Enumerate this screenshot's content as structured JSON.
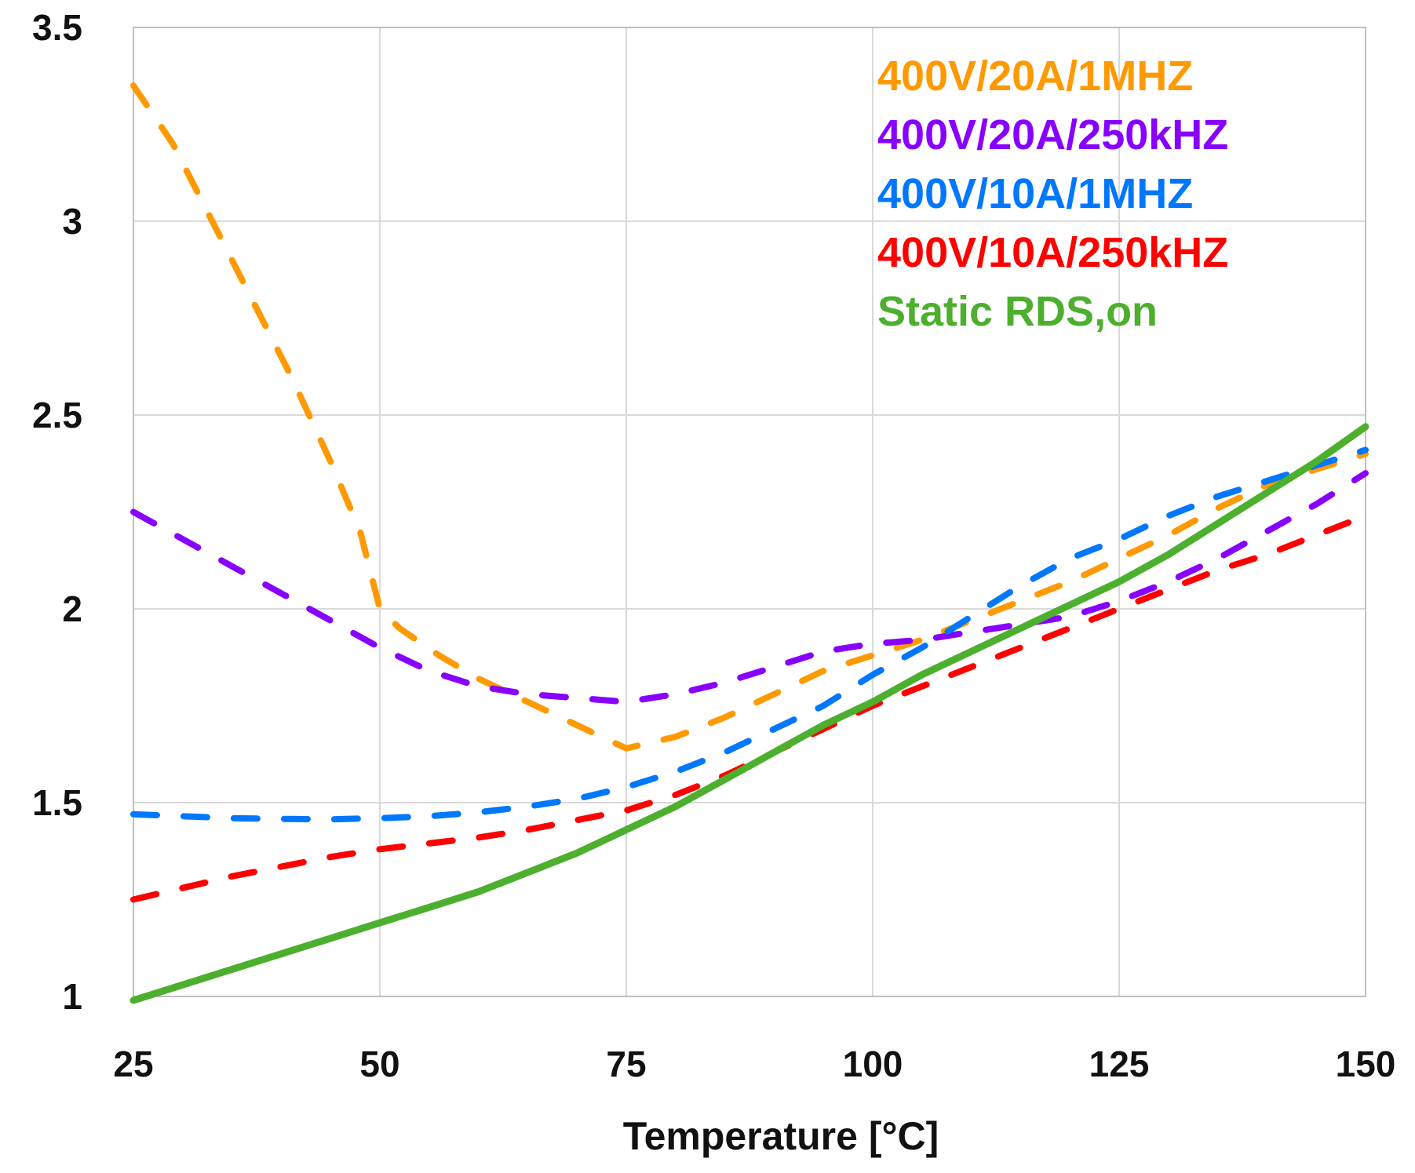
{
  "chart_data": {
    "type": "line",
    "title": "",
    "xlabel": "Temperature [°C]",
    "ylabel": "",
    "xlim": [
      25,
      150
    ],
    "ylim": [
      1,
      3.5
    ],
    "xticks": [
      25,
      50,
      75,
      100,
      125,
      150
    ],
    "yticks": [
      1,
      1.5,
      2,
      2.5,
      3,
      3.5
    ],
    "xtick_labels": [
      "25",
      "50",
      "75",
      "100",
      "125",
      "150"
    ],
    "ytick_labels": [
      "1",
      "1.5",
      "2",
      "2.5",
      "3",
      "3.5"
    ],
    "grid": true,
    "legend_position": "top-right",
    "series": [
      {
        "name": "400V/20A/1MHZ",
        "color": "#FF9900",
        "style": "dashed",
        "x": [
          25,
          29,
          33,
          37,
          41,
          45,
          48,
          50,
          52,
          56,
          60,
          65,
          70,
          75,
          80,
          85,
          90,
          95,
          100,
          105,
          110,
          115,
          120,
          125,
          130,
          135,
          140,
          145,
          150
        ],
        "y": [
          3.35,
          3.2,
          3.0,
          2.8,
          2.6,
          2.38,
          2.2,
          2.0,
          1.95,
          1.88,
          1.82,
          1.76,
          1.7,
          1.64,
          1.67,
          1.72,
          1.78,
          1.84,
          1.88,
          1.92,
          1.97,
          2.02,
          2.07,
          2.13,
          2.19,
          2.26,
          2.32,
          2.36,
          2.4
        ]
      },
      {
        "name": "400V/20A/250kHZ",
        "color": "#8800FF",
        "style": "dashed",
        "x": [
          25,
          30,
          35,
          40,
          45,
          50,
          55,
          60,
          65,
          70,
          75,
          80,
          85,
          90,
          95,
          100,
          105,
          110,
          115,
          120,
          125,
          130,
          135,
          140,
          145,
          150
        ],
        "y": [
          2.25,
          2.18,
          2.11,
          2.04,
          1.97,
          1.9,
          1.84,
          1.8,
          1.78,
          1.77,
          1.76,
          1.78,
          1.81,
          1.85,
          1.89,
          1.91,
          1.92,
          1.94,
          1.96,
          1.98,
          2.02,
          2.07,
          2.13,
          2.2,
          2.27,
          2.35
        ]
      },
      {
        "name": "400V/10A/1MHZ",
        "color": "#0077FF",
        "style": "dashed",
        "x": [
          25,
          30,
          35,
          40,
          45,
          50,
          55,
          60,
          65,
          70,
          75,
          80,
          85,
          90,
          95,
          100,
          105,
          110,
          115,
          120,
          125,
          130,
          135,
          140,
          145,
          150
        ],
        "y": [
          1.47,
          1.465,
          1.46,
          1.458,
          1.457,
          1.46,
          1.465,
          1.475,
          1.49,
          1.51,
          1.54,
          1.58,
          1.63,
          1.69,
          1.75,
          1.83,
          1.9,
          1.98,
          2.06,
          2.13,
          2.18,
          2.24,
          2.29,
          2.33,
          2.37,
          2.41
        ]
      },
      {
        "name": "400V/10A/250kHZ",
        "color": "#FF0000",
        "style": "dashed",
        "x": [
          25,
          30,
          35,
          40,
          45,
          50,
          55,
          60,
          65,
          70,
          75,
          80,
          85,
          90,
          95,
          100,
          105,
          110,
          115,
          120,
          125,
          130,
          135,
          140,
          145,
          150
        ],
        "y": [
          1.25,
          1.28,
          1.31,
          1.335,
          1.36,
          1.38,
          1.395,
          1.41,
          1.43,
          1.455,
          1.48,
          1.52,
          1.57,
          1.63,
          1.69,
          1.75,
          1.8,
          1.85,
          1.9,
          1.95,
          2.0,
          2.05,
          2.1,
          2.14,
          2.19,
          2.24
        ]
      },
      {
        "name": "Static RDS,on",
        "color": "#4DAF2E",
        "style": "solid",
        "x": [
          25,
          30,
          35,
          40,
          45,
          50,
          55,
          60,
          65,
          70,
          75,
          80,
          85,
          90,
          95,
          100,
          105,
          110,
          115,
          120,
          125,
          130,
          135,
          140,
          145,
          150
        ],
        "y": [
          0.99,
          1.03,
          1.07,
          1.11,
          1.15,
          1.19,
          1.23,
          1.27,
          1.32,
          1.37,
          1.43,
          1.49,
          1.56,
          1.63,
          1.7,
          1.76,
          1.83,
          1.89,
          1.95,
          2.01,
          2.07,
          2.14,
          2.22,
          2.3,
          2.38,
          2.47
        ]
      }
    ]
  }
}
